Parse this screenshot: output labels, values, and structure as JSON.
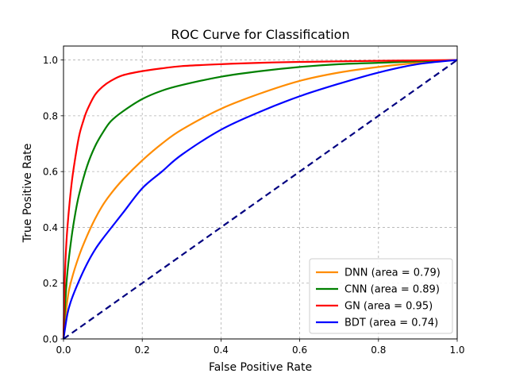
{
  "chart_data": {
    "type": "line",
    "title": "ROC Curve for Classification",
    "xlabel": "False Positive Rate",
    "ylabel": "True Positive Rate",
    "xlim": [
      0,
      1
    ],
    "ylim": [
      0,
      1.05
    ],
    "xticks": [
      "0.0",
      "0.2",
      "0.4",
      "0.6",
      "0.8",
      "1.0"
    ],
    "yticks": [
      "0.0",
      "0.2",
      "0.4",
      "0.6",
      "0.8",
      "1.0"
    ],
    "grid": true,
    "legend_position": "lower-right",
    "series": [
      {
        "name": "DNN (area = 0.79)",
        "color": "#ff8c00",
        "x": [
          0,
          0.01,
          0.02,
          0.04,
          0.06,
          0.08,
          0.1,
          0.12,
          0.15,
          0.2,
          0.25,
          0.3,
          0.4,
          0.5,
          0.6,
          0.7,
          0.8,
          0.9,
          1.0
        ],
        "y": [
          0,
          0.14,
          0.21,
          0.3,
          0.37,
          0.43,
          0.48,
          0.52,
          0.57,
          0.64,
          0.7,
          0.75,
          0.825,
          0.88,
          0.925,
          0.955,
          0.975,
          0.99,
          1.0
        ]
      },
      {
        "name": "CNN (area = 0.89)",
        "color": "#008000",
        "x": [
          0,
          0.005,
          0.01,
          0.02,
          0.03,
          0.04,
          0.06,
          0.08,
          0.1,
          0.12,
          0.15,
          0.2,
          0.25,
          0.3,
          0.4,
          0.5,
          0.6,
          0.7,
          0.8,
          0.9,
          1.0
        ],
        "y": [
          0,
          0.14,
          0.24,
          0.36,
          0.45,
          0.52,
          0.62,
          0.69,
          0.74,
          0.78,
          0.815,
          0.86,
          0.89,
          0.91,
          0.94,
          0.96,
          0.975,
          0.985,
          0.99,
          0.995,
          1.0
        ]
      },
      {
        "name": "GN (area = 0.95)",
        "color": "#ff0000",
        "x": [
          0,
          0.002,
          0.005,
          0.01,
          0.02,
          0.03,
          0.04,
          0.05,
          0.06,
          0.08,
          0.1,
          0.12,
          0.15,
          0.2,
          0.25,
          0.3,
          0.4,
          0.5,
          0.6,
          0.8,
          1.0
        ],
        "y": [
          0,
          0.15,
          0.28,
          0.4,
          0.55,
          0.65,
          0.73,
          0.78,
          0.82,
          0.875,
          0.905,
          0.925,
          0.945,
          0.96,
          0.97,
          0.978,
          0.985,
          0.99,
          0.993,
          0.997,
          1.0
        ]
      },
      {
        "name": "BDT (area = 0.74)",
        "color": "#0000ff",
        "x": [
          0,
          0.01,
          0.02,
          0.04,
          0.06,
          0.08,
          0.1,
          0.15,
          0.2,
          0.25,
          0.3,
          0.4,
          0.5,
          0.6,
          0.7,
          0.8,
          0.9,
          1.0
        ],
        "y": [
          0,
          0.09,
          0.14,
          0.21,
          0.27,
          0.32,
          0.36,
          0.45,
          0.54,
          0.6,
          0.66,
          0.75,
          0.815,
          0.87,
          0.915,
          0.955,
          0.985,
          1.0
        ]
      },
      {
        "name": "",
        "color": "#000080",
        "dashed": true,
        "x": [
          0,
          1
        ],
        "y": [
          0,
          1
        ]
      }
    ]
  }
}
